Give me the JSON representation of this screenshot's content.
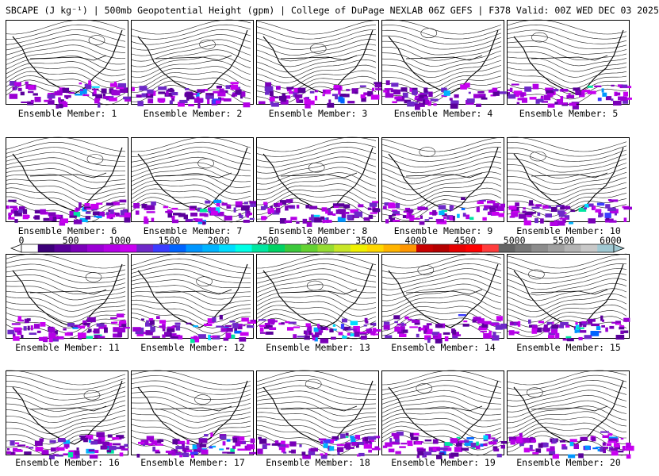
{
  "title": "SBCAPE (J kg⁻¹) | 500mb Geopotential Height (gpm) | College of DuPage NEXLAB 06Z GEFS | F378 Valid: 00Z WED DEC 03 2025",
  "members": [
    {
      "label": "Ensemble Member: 1"
    },
    {
      "label": "Ensemble Member: 2"
    },
    {
      "label": "Ensemble Member: 3"
    },
    {
      "label": "Ensemble Member: 4"
    },
    {
      "label": "Ensemble Member: 5"
    },
    {
      "label": "Ensemble Member: 6"
    },
    {
      "label": "Ensemble Member: 7"
    },
    {
      "label": "Ensemble Member: 8"
    },
    {
      "label": "Ensemble Member: 9"
    },
    {
      "label": "Ensemble Member: 10"
    },
    {
      "label": "Ensemble Member: 11"
    },
    {
      "label": "Ensemble Member: 12"
    },
    {
      "label": "Ensemble Member: 13"
    },
    {
      "label": "Ensemble Member: 14"
    },
    {
      "label": "Ensemble Member: 15"
    },
    {
      "label": "Ensemble Member: 16"
    },
    {
      "label": "Ensemble Member: 17"
    },
    {
      "label": "Ensemble Member: 18"
    },
    {
      "label": "Ensemble Member: 19"
    },
    {
      "label": "Ensemble Member: 20"
    }
  ],
  "colorbar": {
    "min": 0,
    "max": 6000,
    "ticks": [
      "0",
      "500",
      "1000",
      "1500",
      "2000",
      "2500",
      "3000",
      "3500",
      "4000",
      "4500",
      "5000",
      "5500",
      "6000"
    ],
    "colors": [
      "#ffffff",
      "#3c0078",
      "#5a009a",
      "#7a00b8",
      "#9a00d4",
      "#b400e6",
      "#c800f0",
      "#6e28c8",
      "#3c3cff",
      "#0064ff",
      "#0096ff",
      "#00b4ff",
      "#00dcff",
      "#00ffe6",
      "#00e6a0",
      "#00d264",
      "#3cc83c",
      "#64d232",
      "#96dc32",
      "#c8e628",
      "#f0f000",
      "#ffd700",
      "#ffb400",
      "#ff9600",
      "#c80000",
      "#b40000",
      "#e60000",
      "#ff0000",
      "#ff3c3c",
      "#646464",
      "#787878",
      "#8c8c8c",
      "#a0a0a0",
      "#b4b4b4",
      "#c8c8c8",
      "#a0c8d2"
    ]
  }
}
